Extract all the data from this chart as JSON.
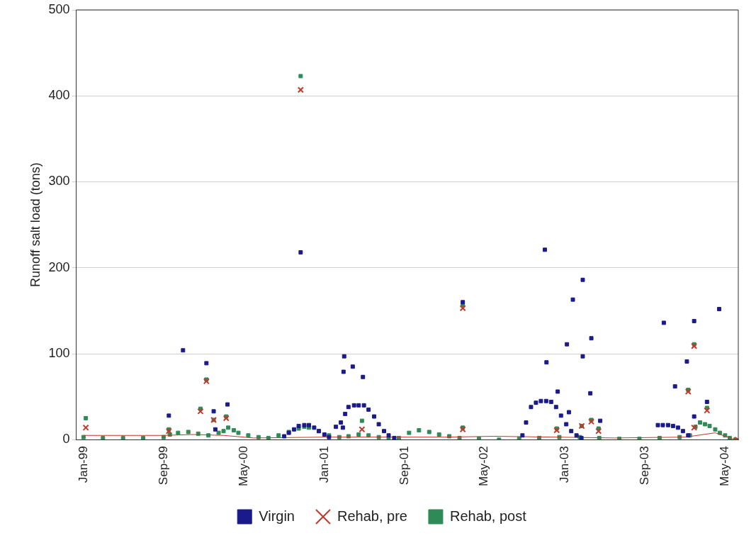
{
  "chart_data": {
    "type": "scatter",
    "ylabel": "Runoff salt load (tons)",
    "xlim": [
      "1998-12-10",
      "2004-06-10"
    ],
    "ylim": [
      0,
      500
    ],
    "yticks": [
      0,
      100,
      200,
      300,
      400,
      500
    ],
    "xticks": [
      {
        "value": "1999-01-01",
        "label": "Jan-99"
      },
      {
        "value": "1999-09-01",
        "label": "Sep-99"
      },
      {
        "value": "2000-05-01",
        "label": "May-00"
      },
      {
        "value": "2001-01-01",
        "label": "Jan-01"
      },
      {
        "value": "2001-09-01",
        "label": "Sep-01"
      },
      {
        "value": "2002-05-01",
        "label": "May-02"
      },
      {
        "value": "2003-01-01",
        "label": "Jan-03"
      },
      {
        "value": "2003-09-01",
        "label": "Sep-03"
      },
      {
        "value": "2004-05-01",
        "label": "May-04"
      }
    ],
    "grid": "y",
    "legend": "bottom",
    "series": [
      {
        "name": "Virgin",
        "color": "#1a1a8c",
        "marker": "square",
        "x": [
          "1999-09-17",
          "1999-10-30",
          "2000-01-09",
          "2000-01-31",
          "2000-02-05",
          "2000-03-13",
          "2000-09-01",
          "2000-09-15",
          "2000-10-01",
          "2000-10-15",
          "2000-10-21",
          "2000-11-01",
          "2000-11-15",
          "2000-12-01",
          "2000-12-15",
          "2001-01-01",
          "2001-01-15",
          "2001-02-05",
          "2001-02-20",
          "2001-02-26",
          "2001-02-28",
          "2001-03-02",
          "2001-03-05",
          "2001-03-15",
          "2001-03-28",
          "2001-04-01",
          "2001-04-15",
          "2001-04-28",
          "2001-05-01",
          "2001-05-15",
          "2001-06-01",
          "2001-06-15",
          "2001-07-01",
          "2001-07-15",
          "2001-08-01",
          "2002-02-25",
          "2002-08-25",
          "2002-09-05",
          "2002-09-20",
          "2002-10-05",
          "2002-10-20",
          "2002-11-05",
          "2002-11-06",
          "2002-11-20",
          "2002-12-05",
          "2002-12-10",
          "2002-12-20",
          "2002-11-01",
          "2003-01-05",
          "2003-01-07",
          "2003-01-13",
          "2003-01-20",
          "2003-01-25",
          "2003-02-05",
          "2003-02-20",
          "2003-02-24",
          "2003-02-24",
          "2003-03-19",
          "2003-03-22",
          "2003-04-18",
          "2003-10-10",
          "2003-10-25",
          "2003-10-28",
          "2003-11-10",
          "2003-11-25",
          "2003-12-01",
          "2003-12-10",
          "2003-12-25",
          "2004-01-06",
          "2004-01-10",
          "2004-01-28",
          "2004-01-28",
          "2004-03-07",
          "2004-04-13"
        ],
        "values": [
          28,
          104,
          89,
          33,
          12,
          41,
          4,
          8,
          12,
          16,
          218,
          17,
          17,
          14,
          10,
          6,
          3,
          15,
          20,
          14,
          79,
          97,
          30,
          38,
          85,
          40,
          40,
          73,
          40,
          35,
          27,
          18,
          10,
          5,
          2,
          160,
          5,
          20,
          38,
          43,
          45,
          45,
          90,
          44,
          38,
          56,
          28,
          221,
          18,
          111,
          32,
          10,
          163,
          5,
          2,
          186,
          97,
          54,
          118,
          22,
          17,
          17,
          136,
          17,
          16,
          62,
          14,
          10,
          91,
          5,
          138,
          27,
          44,
          152
        ]
      },
      {
        "name": "Rehab, pre",
        "color": "#c0392b",
        "marker": "cross",
        "x": [
          "1999-01-08",
          "1999-09-17",
          "1999-12-22",
          "2000-01-09",
          "2000-01-31",
          "2000-03-09",
          "2000-10-21",
          "2001-04-25",
          "2002-02-25",
          "2002-02-25",
          "2002-12-07",
          "2003-02-21",
          "2003-03-22",
          "2003-04-13",
          "2004-01-10",
          "2004-01-28",
          "2004-01-28",
          "2004-03-07",
          "2004-06-07"
        ],
        "values": [
          14,
          10,
          33,
          68,
          23,
          25,
          407,
          12,
          153,
          12,
          11,
          16,
          21,
          10,
          56,
          109,
          14,
          34,
          0
        ]
      },
      {
        "type": "line",
        "color": "#c0392b",
        "marker": "none",
        "x": [
          "1999-01-01",
          "1999-09-01",
          "1999-12-01",
          "2000-03-01",
          "2000-06-01",
          "2001-01-01",
          "2002-01-01",
          "2002-06-01",
          "2003-06-01",
          "2004-01-01",
          "2004-04-01",
          "2004-06-01"
        ],
        "values": [
          5,
          5,
          6,
          5,
          2,
          3,
          3,
          4,
          2,
          3,
          8,
          0
        ]
      },
      {
        "name": "Rehab, post",
        "color": "#2e8b57",
        "marker": "square",
        "x": [
          "1999-01-08",
          "1999-09-17",
          "1999-12-22",
          "2000-01-09",
          "2000-01-31",
          "2000-03-09",
          "2000-10-21",
          "2001-04-25",
          "2002-02-25",
          "2002-02-25",
          "2002-12-07",
          "2003-02-21",
          "2003-03-22",
          "2003-04-13",
          "2004-01-10",
          "2004-01-28",
          "2004-03-07",
          "1999-01-01",
          "1999-03-01",
          "1999-05-01",
          "1999-07-01",
          "1999-09-01",
          "1999-09-20",
          "1999-10-15",
          "1999-11-15",
          "1999-12-15",
          "2000-01-15",
          "2000-02-15",
          "2000-03-01",
          "2000-03-15",
          "2000-04-01",
          "2000-04-15",
          "2000-05-15",
          "2000-06-15",
          "2000-07-15",
          "2000-08-15",
          "2000-09-15",
          "2000-10-15",
          "2000-11-01",
          "2000-11-15",
          "2000-12-15",
          "2001-01-15",
          "2001-02-15",
          "2001-03-15",
          "2001-04-15",
          "2001-05-15",
          "2001-06-15",
          "2001-07-15",
          "2001-08-15",
          "2001-09-15",
          "2001-10-15",
          "2001-11-15",
          "2001-12-15",
          "2002-01-15",
          "2002-02-15",
          "2002-04-15",
          "2002-06-15",
          "2002-08-15",
          "2002-10-15",
          "2002-12-15",
          "2003-02-15",
          "2003-04-15",
          "2003-06-15",
          "2003-08-15",
          "2003-10-15",
          "2003-12-15",
          "2004-01-15",
          "2004-02-01",
          "2004-02-15",
          "2004-03-01",
          "2004-03-15",
          "2004-04-01",
          "2004-04-15",
          "2004-05-01",
          "2004-05-15",
          "2004-06-01"
        ],
        "values": [
          25,
          12,
          36,
          70,
          23,
          27,
          423,
          22,
          156,
          14,
          13,
          16,
          23,
          13,
          58,
          111,
          37,
          3,
          2,
          2,
          2,
          3,
          6,
          8,
          9,
          7,
          5,
          8,
          10,
          14,
          11,
          8,
          5,
          3,
          2,
          5,
          9,
          13,
          15,
          14,
          10,
          5,
          3,
          4,
          6,
          5,
          3,
          1,
          2,
          8,
          11,
          9,
          6,
          4,
          2,
          1,
          0,
          1,
          2,
          3,
          3,
          2,
          1,
          1,
          2,
          3,
          5,
          15,
          20,
          18,
          16,
          12,
          8,
          5,
          2,
          0
        ]
      }
    ]
  }
}
